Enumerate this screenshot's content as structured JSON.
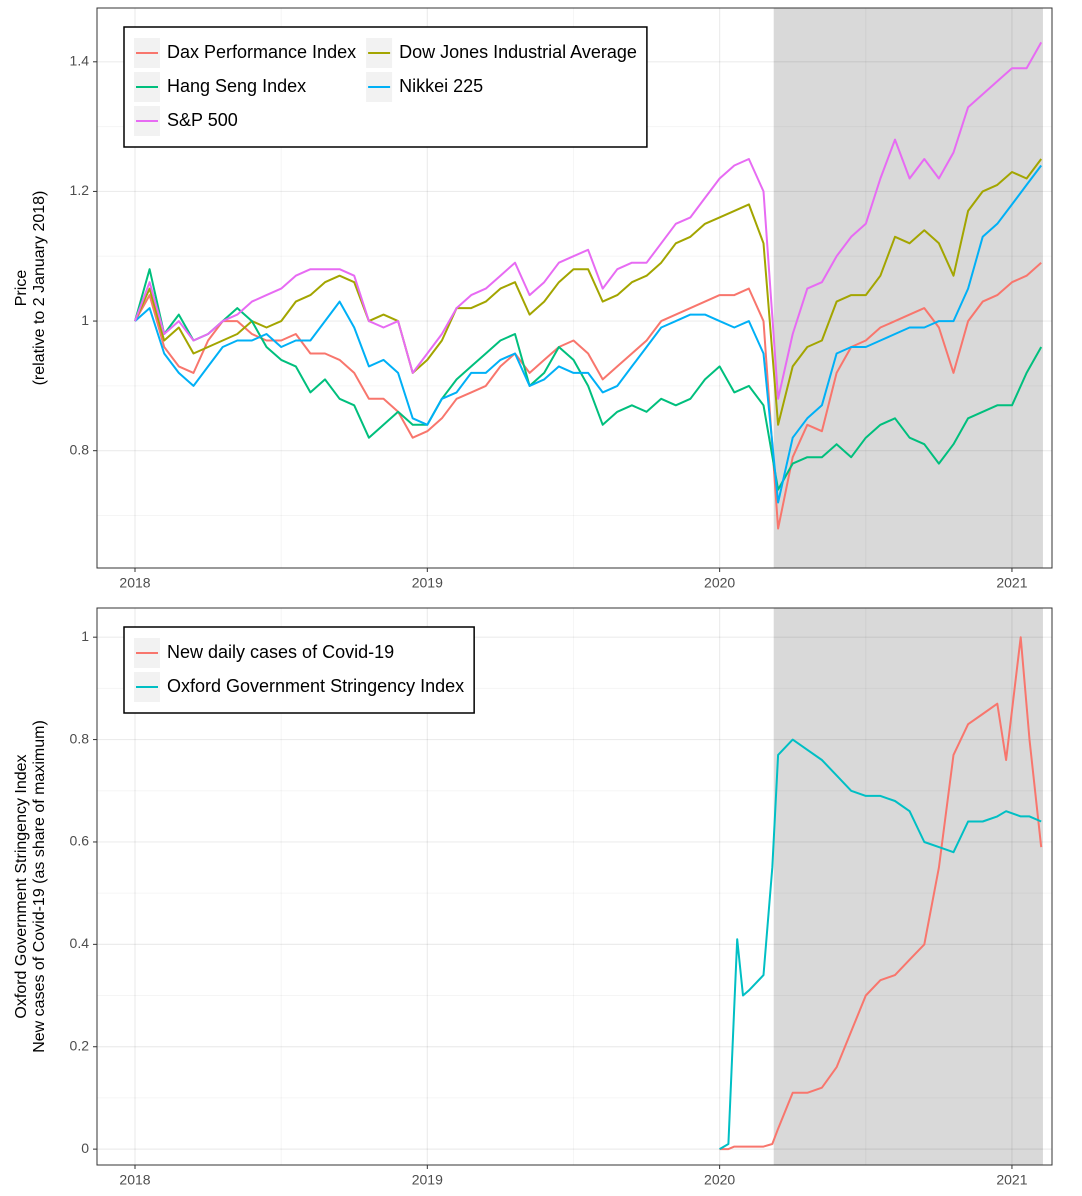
{
  "chart_data": [
    {
      "type": "line",
      "ylabel": [
        "Price",
        "(relative to 2 January 2018)"
      ],
      "xlim": [
        2017.87,
        2021.137
      ],
      "xticks": [
        2018,
        2019,
        2020,
        2021
      ],
      "ylim": [
        0.619,
        1.483
      ],
      "yticks": [
        0.8,
        1,
        1.2,
        1.4
      ],
      "grid": true,
      "legend": "top-left",
      "legend_columns": 2,
      "shade": [
        2020.185,
        2021.106
      ],
      "x": [
        2018,
        2018.05,
        2018.1,
        2018.15,
        2018.2,
        2018.25,
        2018.3,
        2018.35,
        2018.4,
        2018.45,
        2018.5,
        2018.55,
        2018.6,
        2018.65,
        2018.7,
        2018.75,
        2018.8,
        2018.85,
        2018.9,
        2018.95,
        2019,
        2019.05,
        2019.1,
        2019.15,
        2019.2,
        2019.25,
        2019.3,
        2019.35,
        2019.4,
        2019.45,
        2019.5,
        2019.55,
        2019.6,
        2019.65,
        2019.7,
        2019.75,
        2019.8,
        2019.85,
        2019.9,
        2019.95,
        2020,
        2020.05,
        2020.1,
        2020.15,
        2020.2,
        2020.25,
        2020.3,
        2020.35,
        2020.4,
        2020.45,
        2020.5,
        2020.55,
        2020.6,
        2020.65,
        2020.7,
        2020.75,
        2020.8,
        2020.85,
        2020.9,
        2020.95,
        2021,
        2021.05,
        2021.1
      ],
      "series": [
        {
          "name": "Dax Performance Index",
          "color": "#F8766D",
          "values": [
            1.0,
            1.04,
            0.96,
            0.93,
            0.92,
            0.97,
            1.0,
            1.0,
            0.98,
            0.97,
            0.97,
            0.98,
            0.95,
            0.95,
            0.94,
            0.92,
            0.88,
            0.88,
            0.86,
            0.82,
            0.83,
            0.85,
            0.88,
            0.89,
            0.9,
            0.93,
            0.95,
            0.92,
            0.94,
            0.96,
            0.97,
            0.95,
            0.91,
            0.93,
            0.95,
            0.97,
            1.0,
            1.01,
            1.02,
            1.03,
            1.04,
            1.04,
            1.05,
            1.0,
            0.68,
            0.79,
            0.84,
            0.83,
            0.92,
            0.96,
            0.97,
            0.99,
            1.0,
            1.01,
            1.02,
            0.99,
            0.92,
            1.0,
            1.03,
            1.04,
            1.06,
            1.07,
            1.09
          ]
        },
        {
          "name": "Dow Jones Industrial Average",
          "color": "#A3A500",
          "values": [
            1.0,
            1.05,
            0.97,
            0.99,
            0.95,
            0.96,
            0.97,
            0.98,
            1.0,
            0.99,
            1.0,
            1.03,
            1.04,
            1.06,
            1.07,
            1.06,
            1.0,
            1.01,
            1.0,
            0.92,
            0.94,
            0.97,
            1.02,
            1.02,
            1.03,
            1.05,
            1.06,
            1.01,
            1.03,
            1.06,
            1.08,
            1.08,
            1.03,
            1.04,
            1.06,
            1.07,
            1.09,
            1.12,
            1.13,
            1.15,
            1.16,
            1.17,
            1.18,
            1.12,
            0.84,
            0.93,
            0.96,
            0.97,
            1.03,
            1.04,
            1.04,
            1.07,
            1.13,
            1.12,
            1.14,
            1.12,
            1.07,
            1.17,
            1.2,
            1.21,
            1.23,
            1.22,
            1.25
          ]
        },
        {
          "name": "Hang Seng Index",
          "color": "#00BF7D",
          "values": [
            1.0,
            1.08,
            0.98,
            1.01,
            0.97,
            0.98,
            1.0,
            1.02,
            1.0,
            0.96,
            0.94,
            0.93,
            0.89,
            0.91,
            0.88,
            0.87,
            0.82,
            0.84,
            0.86,
            0.84,
            0.84,
            0.88,
            0.91,
            0.93,
            0.95,
            0.97,
            0.98,
            0.9,
            0.92,
            0.96,
            0.94,
            0.9,
            0.84,
            0.86,
            0.87,
            0.86,
            0.88,
            0.87,
            0.88,
            0.91,
            0.93,
            0.89,
            0.9,
            0.87,
            0.74,
            0.78,
            0.79,
            0.79,
            0.81,
            0.79,
            0.82,
            0.84,
            0.85,
            0.82,
            0.81,
            0.78,
            0.81,
            0.85,
            0.86,
            0.87,
            0.87,
            0.92,
            0.96
          ]
        },
        {
          "name": "Nikkei 225",
          "color": "#00B0F6",
          "values": [
            1.0,
            1.02,
            0.95,
            0.92,
            0.9,
            0.93,
            0.96,
            0.97,
            0.97,
            0.98,
            0.96,
            0.97,
            0.97,
            1.0,
            1.03,
            0.99,
            0.93,
            0.94,
            0.92,
            0.85,
            0.84,
            0.88,
            0.89,
            0.92,
            0.92,
            0.94,
            0.95,
            0.9,
            0.91,
            0.93,
            0.92,
            0.92,
            0.89,
            0.9,
            0.93,
            0.96,
            0.99,
            1.0,
            1.01,
            1.01,
            1.0,
            0.99,
            1.0,
            0.95,
            0.72,
            0.82,
            0.85,
            0.87,
            0.95,
            0.96,
            0.96,
            0.97,
            0.98,
            0.99,
            0.99,
            1.0,
            1.0,
            1.05,
            1.13,
            1.15,
            1.18,
            1.21,
            1.24
          ]
        },
        {
          "name": "S&P 500",
          "color": "#E76BF3",
          "values": [
            1.0,
            1.06,
            0.98,
            1.0,
            0.97,
            0.98,
            1.0,
            1.01,
            1.03,
            1.04,
            1.05,
            1.07,
            1.08,
            1.08,
            1.08,
            1.07,
            1.0,
            0.99,
            1.0,
            0.92,
            0.95,
            0.98,
            1.02,
            1.04,
            1.05,
            1.07,
            1.09,
            1.04,
            1.06,
            1.09,
            1.1,
            1.11,
            1.05,
            1.08,
            1.09,
            1.09,
            1.12,
            1.15,
            1.16,
            1.19,
            1.22,
            1.24,
            1.25,
            1.2,
            0.88,
            0.98,
            1.05,
            1.06,
            1.1,
            1.13,
            1.15,
            1.22,
            1.28,
            1.22,
            1.25,
            1.22,
            1.26,
            1.33,
            1.35,
            1.37,
            1.39,
            1.39,
            1.43
          ]
        }
      ]
    },
    {
      "type": "line",
      "ylabel": [
        "Oxford Government Stringency Index",
        "New cases of Covid-19 (as share of maximum)"
      ],
      "xlim": [
        2017.87,
        2021.137
      ],
      "xticks": [
        2018,
        2019,
        2020,
        2021
      ],
      "ylim": [
        -0.031,
        1.057
      ],
      "yticks": [
        0,
        0.2,
        0.4,
        0.6,
        0.8,
        1
      ],
      "grid": true,
      "legend": "top-left",
      "legend_columns": 1,
      "shade": [
        2020.185,
        2021.106
      ],
      "x": [
        2020,
        2020.03,
        2020.05,
        2020.06,
        2020.08,
        2020.1,
        2020.15,
        2020.18,
        2020.2,
        2020.25,
        2020.3,
        2020.35,
        2020.4,
        2020.45,
        2020.5,
        2020.55,
        2020.6,
        2020.65,
        2020.7,
        2020.75,
        2020.8,
        2020.85,
        2020.9,
        2020.95,
        2020.98,
        2021.03,
        2021.06,
        2021.1
      ],
      "series": [
        {
          "name": "New daily cases of Covid-19",
          "color": "#F8766D",
          "values": [
            0,
            0,
            0.005,
            0.005,
            0.005,
            0.005,
            0.005,
            0.01,
            0.04,
            0.11,
            0.11,
            0.12,
            0.16,
            0.23,
            0.3,
            0.33,
            0.34,
            0.37,
            0.4,
            0.55,
            0.77,
            0.83,
            0.85,
            0.87,
            0.76,
            1.0,
            0.8,
            0.59
          ]
        },
        {
          "name": "Oxford Government Stringency Index",
          "color": "#00BFC4",
          "values": [
            0,
            0.01,
            0.28,
            0.41,
            0.3,
            0.31,
            0.34,
            0.55,
            0.77,
            0.8,
            0.78,
            0.76,
            0.73,
            0.7,
            0.69,
            0.69,
            0.68,
            0.66,
            0.6,
            0.59,
            0.58,
            0.64,
            0.64,
            0.65,
            0.66,
            0.65,
            0.65,
            0.64
          ]
        }
      ]
    }
  ]
}
